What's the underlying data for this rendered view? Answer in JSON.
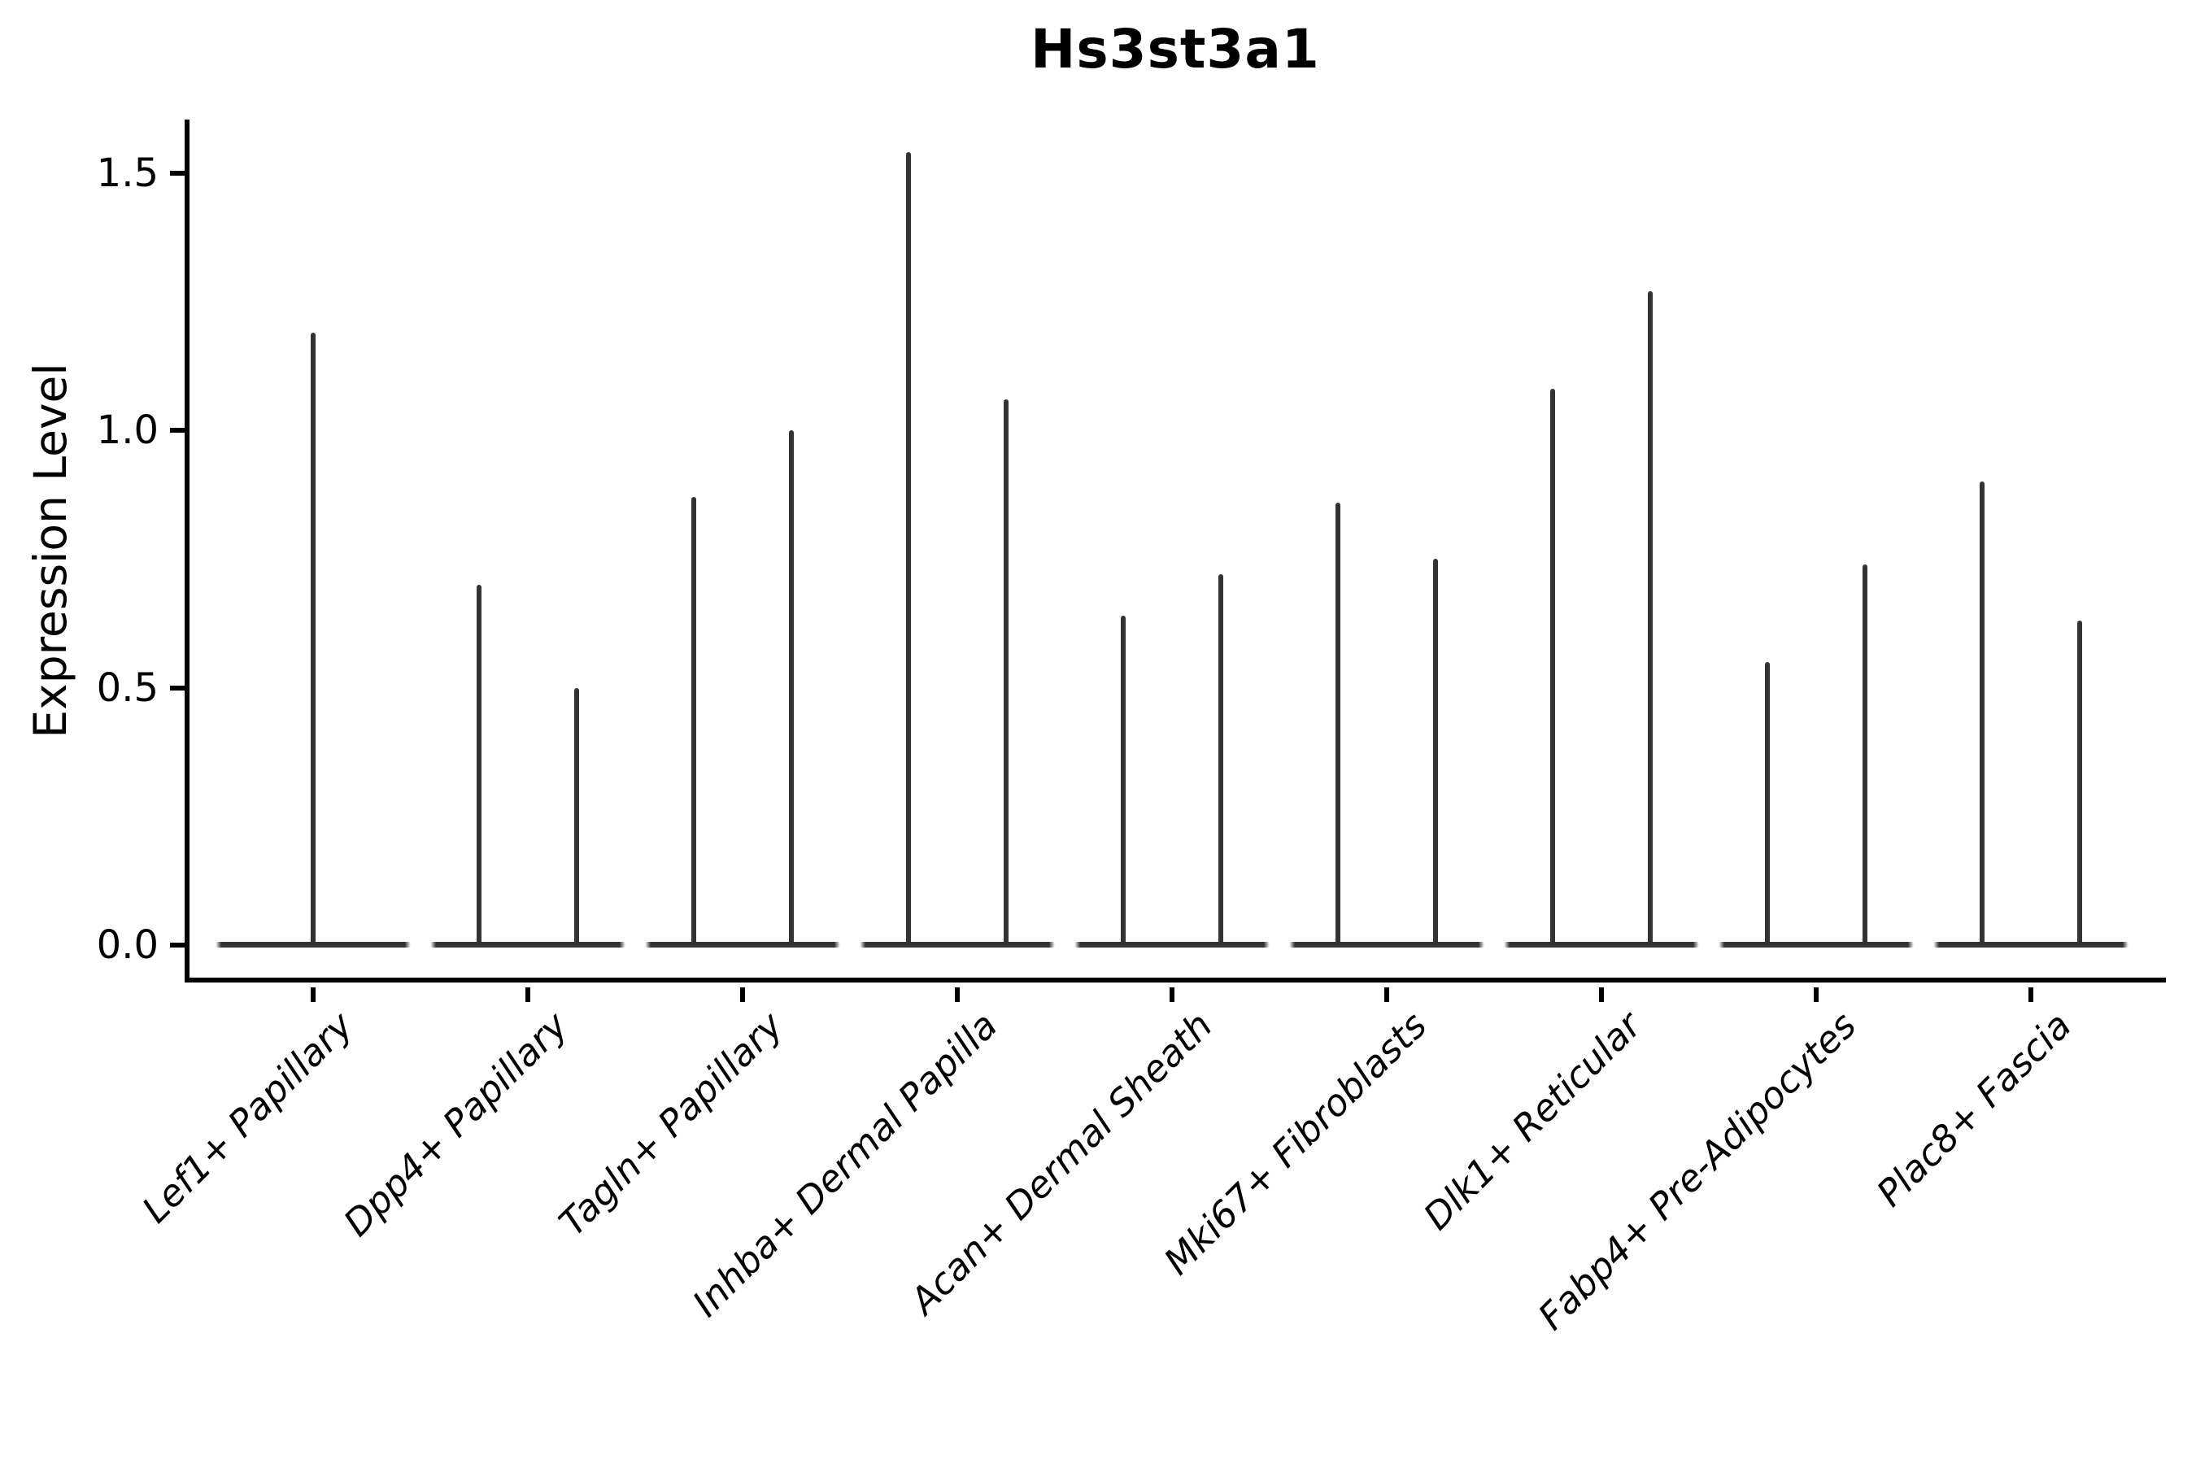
{
  "chart_data": {
    "type": "violin",
    "title": "Hs3st3a1",
    "xlabel": "",
    "ylabel": "Expression Level",
    "yticks": [
      "0.0",
      "0.5",
      "1.0",
      "1.5"
    ],
    "ytick_values": [
      0.0,
      0.5,
      1.0,
      1.5
    ],
    "ylim": [
      -0.07,
      1.6
    ],
    "grid": false,
    "legend": "none",
    "violin_color": "#333333",
    "axis_color": "#000000",
    "description": "Thin violin plots (expression mostly 0) per fibroblast subtype; flat violin body at 0 with thin spikes up to the max expression value. Category 1 has a single centered violin; all others have two violins side by side.",
    "categories": [
      {
        "label": "Lef1+ Papillary",
        "violin_maxima": [
          1.19
        ]
      },
      {
        "label": "Dpp4+ Papillary",
        "violin_maxima": [
          0.7,
          0.5
        ]
      },
      {
        "label": "Tagln+ Papillary",
        "violin_maxima": [
          0.87,
          1.0
        ]
      },
      {
        "label": "Inhba+ Dermal Papilla",
        "violin_maxima": [
          1.54,
          1.06
        ]
      },
      {
        "label": "Acan+ Dermal Sheath",
        "violin_maxima": [
          0.64,
          0.72
        ]
      },
      {
        "label": "Mki67+ Fibroblasts",
        "violin_maxima": [
          0.86,
          0.75
        ]
      },
      {
        "label": "Dlk1+ Reticular",
        "violin_maxima": [
          1.08,
          1.27
        ]
      },
      {
        "label": "Fabp4+ Pre-Adipocytes",
        "violin_maxima": [
          0.55,
          0.74
        ]
      },
      {
        "label": "Plac8+ Fascia",
        "violin_maxima": [
          0.9,
          0.63
        ]
      }
    ]
  }
}
